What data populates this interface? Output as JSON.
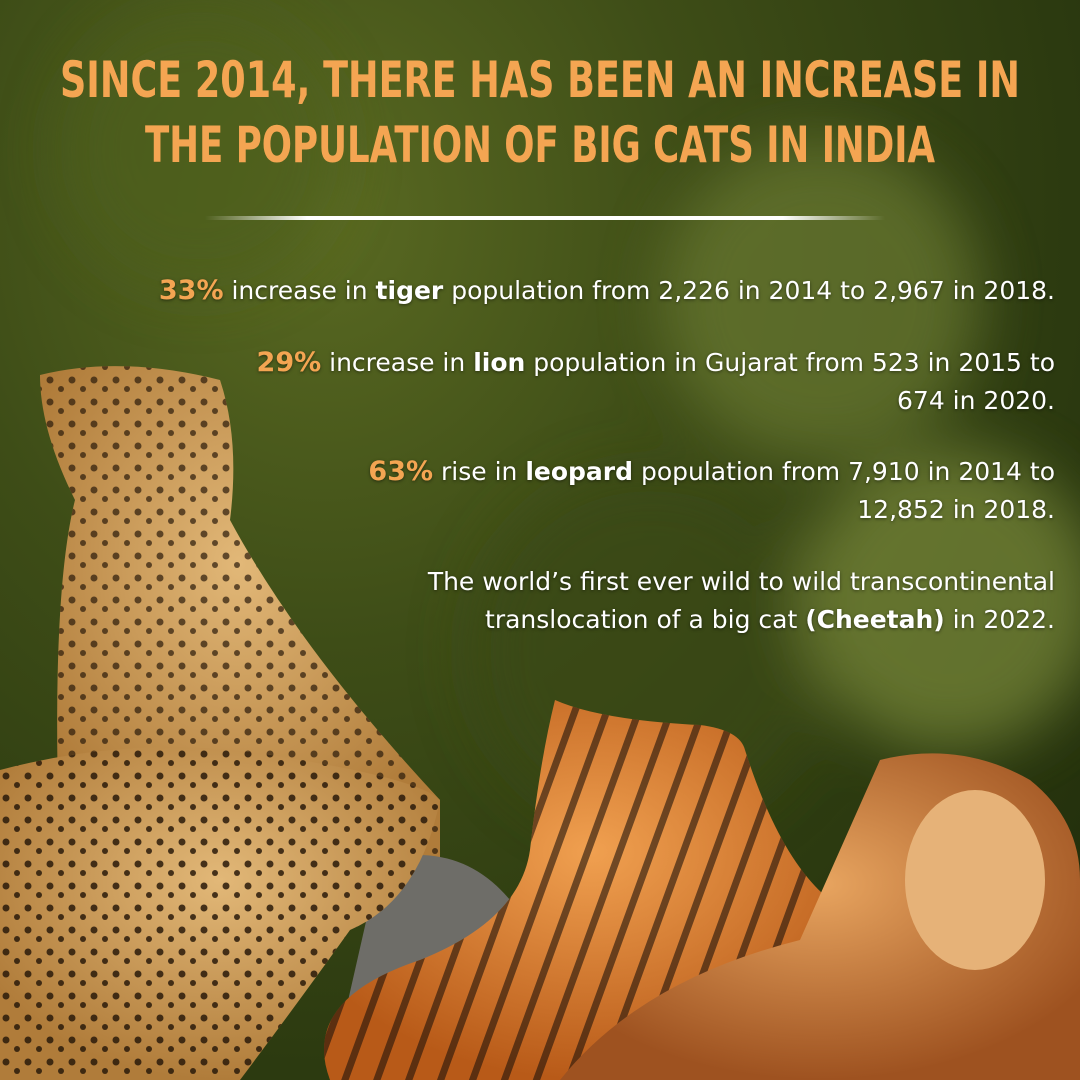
{
  "title": {
    "lines": [
      "SINCE 2014, THERE HAS BEEN AN INCREASE IN",
      "THE POPULATION OF BIG CATS IN INDIA"
    ]
  },
  "facts": [
    {
      "highlight": "33%",
      "before": " increase in ",
      "bold": "tiger",
      "after": " population from 2,226 in 2014 to 2,967 in 2018."
    },
    {
      "highlight": "29%",
      "before": " increase in ",
      "bold": "lion",
      "after": " population in Gujarat from  523 in 2015 to 674 in 2020."
    },
    {
      "highlight": "63%",
      "before": " rise in ",
      "bold": "leopard",
      "after": " population from 7,910 in 2014 to 12,852 in 2018."
    },
    {
      "before": "The world’s first ever wild to wild transcontinental translocation of a big cat ",
      "bold": "(Cheetah)",
      "after": " in 2022."
    }
  ]
}
